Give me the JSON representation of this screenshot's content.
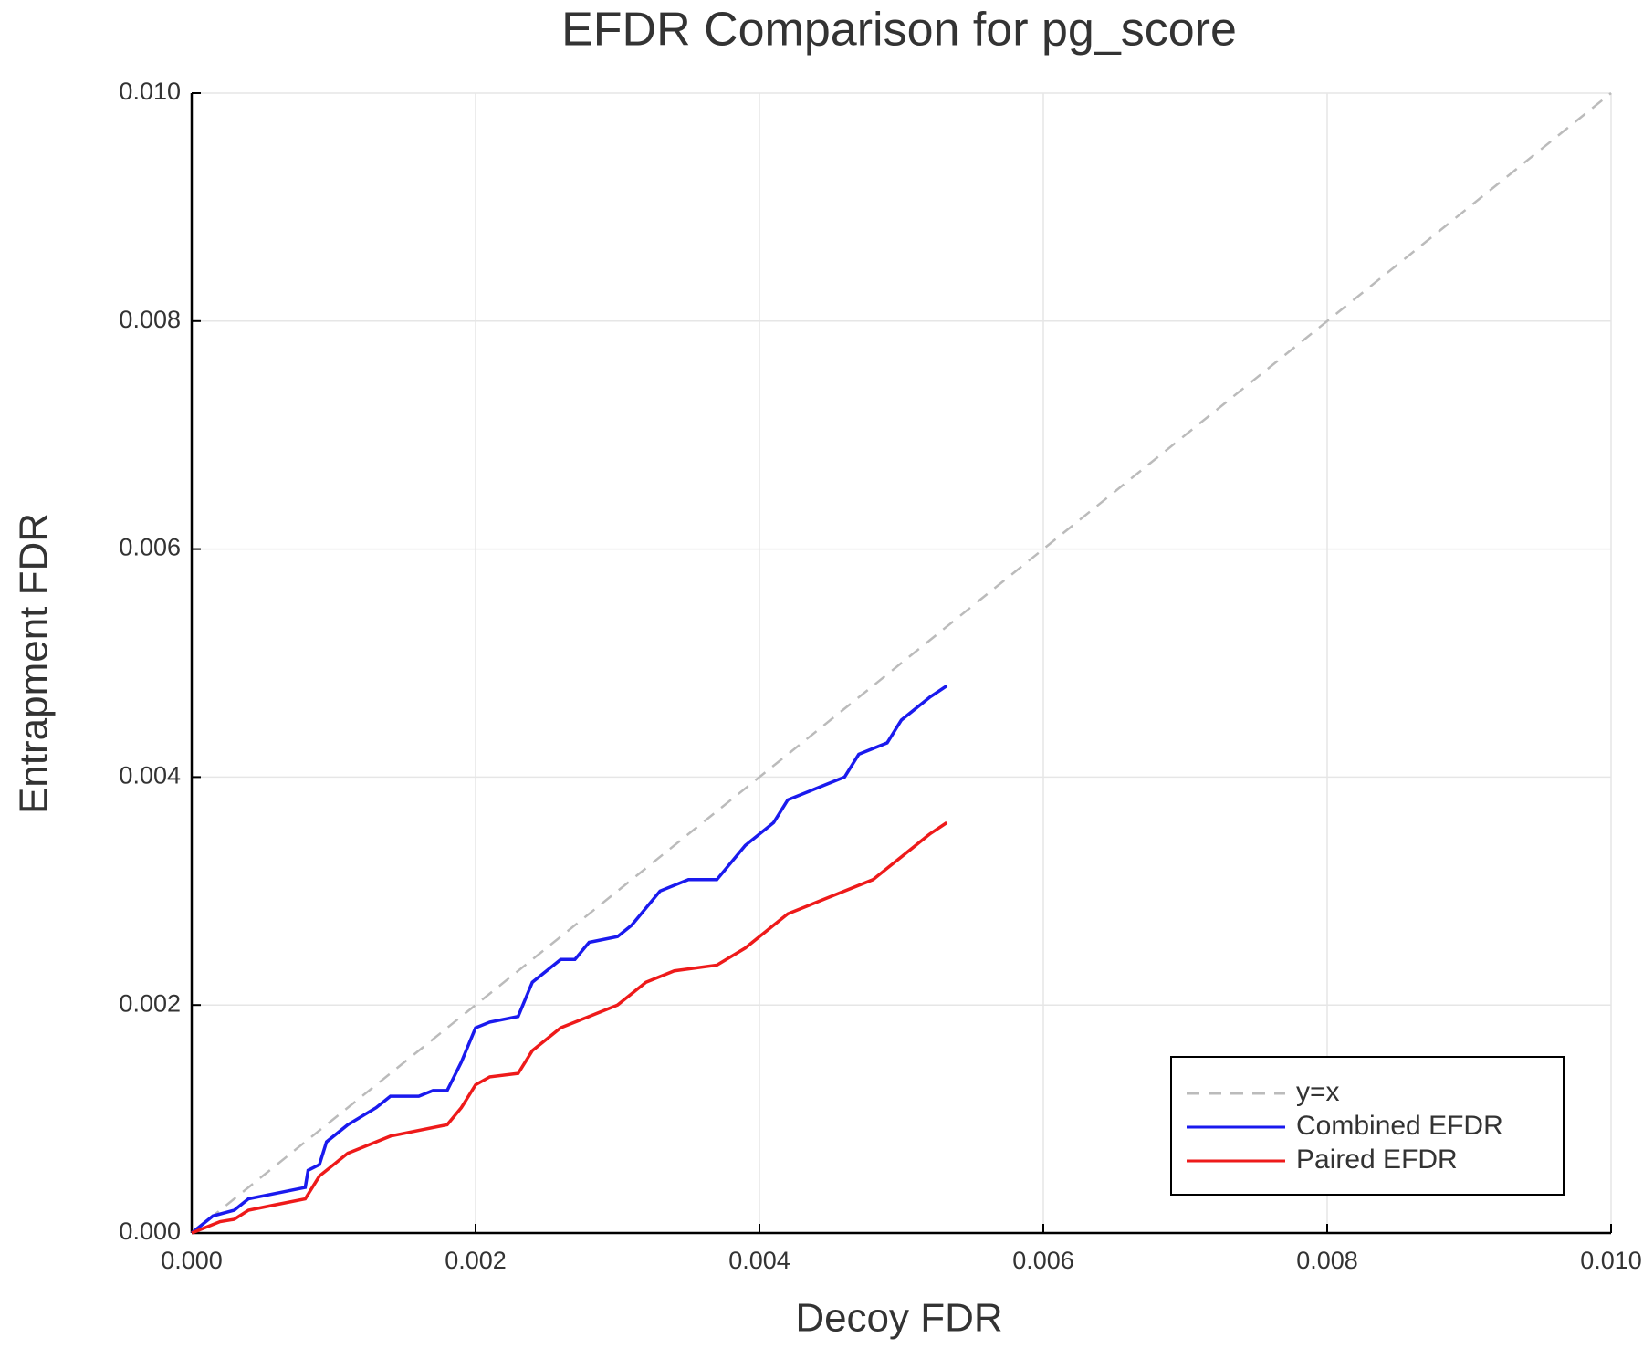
{
  "chart_data": {
    "type": "line",
    "title": "EFDR Comparison for pg_score",
    "x_label": "Decoy FDR",
    "y_label": "Entrapment FDR",
    "xlim": [
      0,
      0.01
    ],
    "ylim": [
      0,
      0.01
    ],
    "xticks": [
      {
        "value": 0,
        "label": "0.000"
      },
      {
        "value": 0.002,
        "label": "0.002"
      },
      {
        "value": 0.004,
        "label": "0.004"
      },
      {
        "value": 0.006,
        "label": "0.006"
      },
      {
        "value": 0.008,
        "label": "0.008"
      },
      {
        "value": 0.01,
        "label": "0.010"
      }
    ],
    "yticks": [
      {
        "value": 0,
        "label": "0.000"
      },
      {
        "value": 0.002,
        "label": "0.002"
      },
      {
        "value": 0.004,
        "label": "0.004"
      },
      {
        "value": 0.006,
        "label": "0.006"
      },
      {
        "value": 0.008,
        "label": "0.008"
      },
      {
        "value": 0.01,
        "label": "0.010"
      }
    ],
    "grid": true,
    "legend_position": "lower right",
    "series": [
      {
        "name": "y=x",
        "color": "#bbbbbb",
        "line_style": "dashed",
        "x": [
          0,
          0.01
        ],
        "values": [
          0,
          0.01
        ]
      },
      {
        "name": "Combined EFDR",
        "color": "#1a1aee",
        "line_style": "solid",
        "x": [
          0,
          0.00015,
          0.0003,
          0.0004,
          0.0006,
          0.0008,
          0.00082,
          0.0009,
          0.00095,
          0.0011,
          0.0013,
          0.0014,
          0.0016,
          0.0017,
          0.0018,
          0.0019,
          0.002,
          0.0021,
          0.0023,
          0.0024,
          0.0026,
          0.0027,
          0.0028,
          0.003,
          0.0031,
          0.0033,
          0.0035,
          0.0037,
          0.0039,
          0.0041,
          0.0042,
          0.0044,
          0.0046,
          0.0047,
          0.0049,
          0.005,
          0.0052,
          0.00532
        ],
        "values": [
          0,
          0.00015,
          0.0002,
          0.0003,
          0.00035,
          0.0004,
          0.00055,
          0.0006,
          0.0008,
          0.00095,
          0.0011,
          0.0012,
          0.0012,
          0.00125,
          0.00125,
          0.0015,
          0.0018,
          0.00185,
          0.0019,
          0.0022,
          0.0024,
          0.0024,
          0.00255,
          0.0026,
          0.0027,
          0.003,
          0.0031,
          0.0031,
          0.0034,
          0.0036,
          0.0038,
          0.0039,
          0.004,
          0.0042,
          0.0043,
          0.0045,
          0.0047,
          0.0048
        ]
      },
      {
        "name": "Paired EFDR",
        "color": "#ee1a1a",
        "line_style": "solid",
        "x": [
          0,
          0.0002,
          0.0003,
          0.0004,
          0.0006,
          0.0008,
          0.00085,
          0.0009,
          0.001,
          0.0011,
          0.0012,
          0.0014,
          0.0016,
          0.0018,
          0.0019,
          0.002,
          0.0021,
          0.0023,
          0.0024,
          0.0026,
          0.0028,
          0.003,
          0.0032,
          0.0034,
          0.0037,
          0.0039,
          0.004,
          0.0041,
          0.0042,
          0.0044,
          0.0046,
          0.0048,
          0.0049,
          0.005,
          0.0052,
          0.00532
        ],
        "values": [
          0,
          0.0001,
          0.00012,
          0.0002,
          0.00025,
          0.0003,
          0.0004,
          0.0005,
          0.0006,
          0.0007,
          0.00075,
          0.00085,
          0.0009,
          0.00095,
          0.0011,
          0.0013,
          0.00137,
          0.0014,
          0.0016,
          0.0018,
          0.0019,
          0.002,
          0.0022,
          0.0023,
          0.00235,
          0.0025,
          0.0026,
          0.0027,
          0.0028,
          0.0029,
          0.003,
          0.0031,
          0.0032,
          0.0033,
          0.0035,
          0.0036
        ]
      }
    ]
  }
}
